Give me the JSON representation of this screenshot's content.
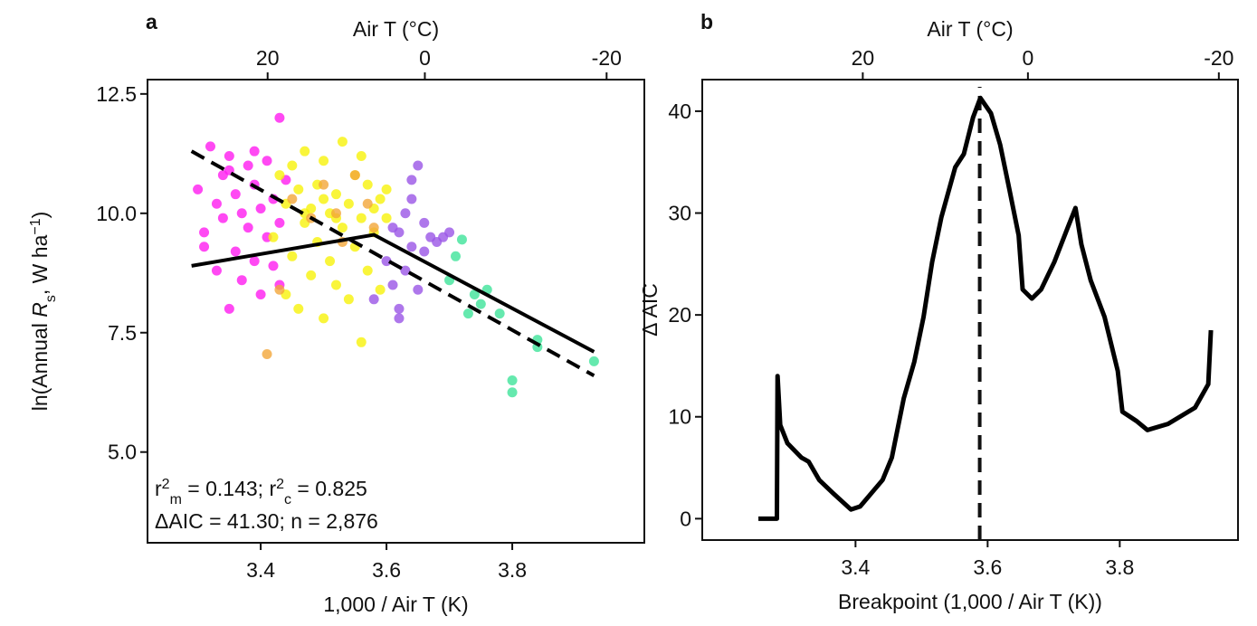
{
  "chart_data": [
    {
      "type": "scatter",
      "panel_label": "a",
      "xlabel": "1,000 / Air T (K)",
      "x2label": "Air T (°C)",
      "ylabel_parts": [
        "ln(Annual ",
        "R",
        "s",
        ",  W ha",
        "−1",
        ")"
      ],
      "annotation_parts": [
        "r",
        "2",
        "m",
        " = 0.143; r",
        "2",
        "c",
        " = 0.825"
      ],
      "annotation_line2": "ΔAIC = 41.30; n = 2,876",
      "xlim": [
        3.22,
        4.01
      ],
      "ylim": [
        3.1,
        12.8
      ],
      "xticks": [
        3.4,
        3.6,
        3.8
      ],
      "x2ticks": [
        {
          "value": 3.411,
          "label": "20"
        },
        {
          "value": 3.661,
          "label": "0"
        },
        {
          "value": 3.95,
          "label": "-20"
        }
      ],
      "yticks": [
        {
          "value": 5.0,
          "label": "5.0"
        },
        7.5,
        {
          "value": 10.0,
          "label": "10.0"
        },
        12.5
      ],
      "series": [
        {
          "color": "#ff1cf0",
          "x": [
            3.3,
            3.31,
            3.32,
            3.33,
            3.33,
            3.34,
            3.34,
            3.35,
            3.35,
            3.36,
            3.36,
            3.37,
            3.37,
            3.38,
            3.38,
            3.39,
            3.39,
            3.4,
            3.4,
            3.41,
            3.41,
            3.42,
            3.42,
            3.43,
            3.43,
            3.44,
            3.31,
            3.35,
            3.39,
            3.43
          ],
          "y": [
            10.5,
            9.6,
            11.4,
            10.2,
            8.8,
            9.9,
            10.8,
            8.0,
            11.2,
            10.4,
            9.2,
            10.0,
            8.6,
            11.0,
            9.7,
            10.6,
            9.0,
            10.1,
            8.3,
            11.1,
            9.5,
            10.3,
            8.9,
            12.0,
            9.8,
            10.7,
            9.3,
            10.9,
            11.3,
            8.5
          ]
        },
        {
          "color": "#f7f20a",
          "x": [
            3.42,
            3.43,
            3.44,
            3.44,
            3.45,
            3.45,
            3.46,
            3.46,
            3.47,
            3.47,
            3.48,
            3.48,
            3.49,
            3.49,
            3.5,
            3.5,
            3.51,
            3.51,
            3.52,
            3.52,
            3.53,
            3.53,
            3.54,
            3.54,
            3.55,
            3.55,
            3.56,
            3.56,
            3.57,
            3.57,
            3.58,
            3.58,
            3.59,
            3.59,
            3.6,
            3.6,
            3.47,
            3.52,
            3.56,
            3.5
          ],
          "y": [
            9.5,
            10.8,
            8.3,
            10.2,
            11.0,
            9.1,
            10.5,
            8.0,
            9.8,
            11.3,
            10.1,
            8.7,
            10.6,
            9.4,
            11.1,
            7.8,
            10.0,
            9.0,
            10.4,
            8.5,
            11.5,
            9.7,
            10.2,
            8.2,
            10.8,
            9.3,
            9.9,
            7.3,
            10.6,
            8.8,
            10.1,
            9.6,
            10.3,
            8.4,
            9.9,
            10.5,
            10.0,
            9.9,
            11.2,
            10.3
          ]
        },
        {
          "color": "#f2a63a",
          "x": [
            3.41,
            3.45,
            3.48,
            3.5,
            3.53,
            3.55,
            3.57,
            3.58,
            3.43,
            3.52
          ],
          "y": [
            7.05,
            10.3,
            9.9,
            10.6,
            9.4,
            10.8,
            10.2,
            9.7,
            8.4,
            10.0
          ]
        },
        {
          "color": "#9a55e6",
          "x": [
            3.58,
            3.6,
            3.61,
            3.62,
            3.62,
            3.63,
            3.63,
            3.64,
            3.64,
            3.65,
            3.65,
            3.66,
            3.67,
            3.68,
            3.69,
            3.7,
            3.64,
            3.62,
            3.66,
            3.61
          ],
          "y": [
            8.2,
            9.0,
            8.5,
            9.6,
            7.8,
            10.0,
            8.8,
            10.7,
            9.3,
            11.0,
            8.4,
            9.2,
            9.5,
            9.4,
            9.5,
            9.6,
            10.3,
            8.0,
            9.8,
            9.7
          ]
        },
        {
          "color": "#3fe39a",
          "x": [
            3.72,
            3.7,
            3.74,
            3.75,
            3.73,
            3.78,
            3.84,
            3.84,
            3.8,
            3.8,
            3.93,
            3.76,
            3.71
          ],
          "y": [
            9.45,
            8.6,
            8.3,
            8.1,
            7.9,
            7.9,
            7.35,
            7.2,
            6.5,
            6.25,
            6.9,
            8.4,
            9.1
          ]
        }
      ],
      "lines": [
        {
          "style": "solid",
          "color": "#000000",
          "x": [
            3.29,
            3.58,
            3.93
          ],
          "y": [
            8.9,
            9.55,
            7.1
          ]
        },
        {
          "style": "dashed",
          "color": "#000000",
          "x": [
            3.29,
            3.93
          ],
          "y": [
            11.3,
            6.6
          ]
        }
      ]
    },
    {
      "type": "line",
      "panel_label": "b",
      "xlabel": "Breakpoint (1,000 / Air T (K))",
      "x2label": "Air T (°C)",
      "ylabel": "Δ AIC",
      "xlim": [
        3.168,
        3.979
      ],
      "ylim": [
        -2.1,
        43.1
      ],
      "xticks": [
        3.4,
        3.6,
        3.8
      ],
      "x2ticks": [
        {
          "value": 3.411,
          "label": "20"
        },
        {
          "value": 3.661,
          "label": "0"
        },
        {
          "value": 3.95,
          "label": "-20"
        }
      ],
      "yticks": [
        0,
        10,
        20,
        30,
        40
      ],
      "breakpoint": 3.588,
      "series": [
        {
          "color": "#000000",
          "x": [
            3.253,
            3.281,
            3.282,
            3.286,
            3.297,
            3.318,
            3.329,
            3.345,
            3.366,
            3.393,
            3.407,
            3.441,
            3.455,
            3.473,
            3.489,
            3.503,
            3.516,
            3.53,
            3.551,
            3.564,
            3.578,
            3.589,
            3.605,
            3.619,
            3.633,
            3.647,
            3.653,
            3.667,
            3.681,
            3.701,
            3.722,
            3.733,
            3.742,
            3.756,
            3.777,
            3.797,
            3.804,
            3.825,
            3.842,
            3.873,
            3.914,
            3.934,
            3.938
          ],
          "values": [
            0,
            0,
            14.0,
            9.2,
            7.4,
            6.0,
            5.6,
            3.8,
            2.5,
            0.9,
            1.2,
            3.8,
            6.0,
            11.8,
            15.4,
            19.8,
            25.2,
            29.6,
            34.5,
            35.8,
            39.4,
            41.3,
            39.8,
            36.7,
            32.3,
            27.8,
            22.5,
            21.6,
            22.5,
            25.2,
            28.7,
            30.5,
            26.9,
            23.4,
            19.8,
            14.5,
            10.5,
            9.6,
            8.7,
            9.3,
            10.9,
            13.2,
            18.5
          ]
        }
      ]
    }
  ]
}
